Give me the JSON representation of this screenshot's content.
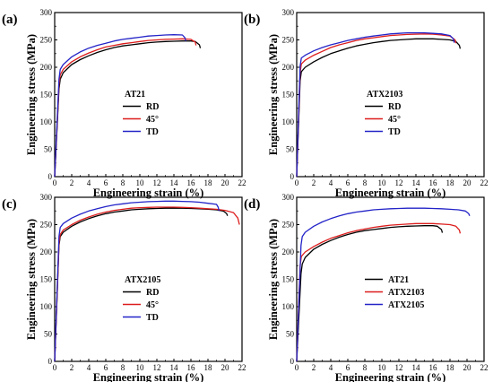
{
  "chart_data": [
    {
      "panel": "(a)",
      "type": "line",
      "xlabel": "Engineering strain (%)",
      "ylabel": "Engineering stress (MPa)",
      "xlim": [
        0,
        22
      ],
      "ylim": [
        0,
        300
      ],
      "xticks": [
        "0",
        "2",
        "4",
        "6",
        "8",
        "10",
        "12",
        "14",
        "16",
        "18",
        "20",
        "22"
      ],
      "yticks": [
        "0",
        "50",
        "100",
        "150",
        "200",
        "250",
        "300"
      ],
      "legend_title": "AT21",
      "legend_position": "center-left",
      "series": [
        {
          "name": "RD",
          "color": "#000000",
          "x": [
            0,
            0.5,
            0.65,
            1,
            2,
            3,
            4,
            5,
            6,
            7,
            8,
            9,
            10,
            11,
            12,
            13,
            14,
            15,
            16,
            16.5,
            17,
            17.1
          ],
          "y": [
            0,
            160,
            178,
            190,
            205,
            214,
            221,
            227,
            232,
            236,
            239,
            241,
            243,
            245,
            246,
            247,
            247.5,
            248,
            248,
            247,
            241,
            235
          ]
        },
        {
          "name": "45°",
          "color": "#dd1c1c",
          "x": [
            0,
            0.5,
            0.65,
            1,
            2,
            3,
            4,
            5,
            6,
            7,
            8,
            9,
            10,
            11,
            12,
            13,
            14,
            15,
            16,
            16.5,
            16.6
          ],
          "y": [
            0,
            168,
            186,
            196,
            210,
            219,
            226,
            232,
            237,
            240,
            243,
            245,
            247,
            249,
            250,
            251,
            251.5,
            252,
            251,
            246,
            240
          ]
        },
        {
          "name": "TD",
          "color": "#2323c8",
          "x": [
            0,
            0.5,
            0.65,
            1,
            2,
            3,
            4,
            5,
            6,
            7,
            8,
            9,
            10,
            11,
            12,
            13,
            14,
            15,
            15.3,
            15.4
          ],
          "y": [
            0,
            178,
            196,
            205,
            219,
            228,
            235,
            240,
            244,
            248,
            251,
            253,
            255,
            257,
            258,
            259,
            259.5,
            259,
            254,
            248
          ]
        }
      ]
    },
    {
      "panel": "(b)",
      "type": "line",
      "xlabel": "Engineering strain (%)",
      "ylabel": "Engineering stress (MPa)",
      "xlim": [
        0,
        22
      ],
      "ylim": [
        0,
        300
      ],
      "xticks": [
        "0",
        "2",
        "4",
        "6",
        "8",
        "10",
        "12",
        "14",
        "16",
        "18",
        "20",
        "22"
      ],
      "yticks": [
        "0",
        "50",
        "100",
        "150",
        "200",
        "250",
        "300"
      ],
      "legend_title": "ATX2103",
      "legend_position": "center-right",
      "series": [
        {
          "name": "RD",
          "color": "#000000",
          "x": [
            0,
            0.4,
            0.55,
            1,
            2,
            3,
            4,
            5,
            6,
            7,
            8,
            9,
            10,
            11,
            12,
            13,
            14,
            15,
            16,
            17,
            18,
            18.7,
            19.1,
            19.2
          ],
          "y": [
            0,
            175,
            192,
            200,
            210,
            218,
            225,
            230,
            235,
            239,
            242,
            245,
            247,
            249,
            250,
            251,
            252,
            252,
            252,
            251,
            250,
            247,
            240,
            234
          ]
        },
        {
          "name": "45°",
          "color": "#dd1c1c",
          "x": [
            0,
            0.4,
            0.55,
            1,
            2,
            3,
            4,
            5,
            6,
            7,
            8,
            9,
            10,
            11,
            12,
            13,
            14,
            15,
            16,
            17,
            18,
            18.6,
            18.7
          ],
          "y": [
            0,
            190,
            206,
            213,
            222,
            229,
            236,
            241,
            245,
            249,
            252,
            254,
            256,
            258,
            259,
            260,
            260.5,
            261,
            260.5,
            259,
            257,
            250,
            244
          ]
        },
        {
          "name": "TD",
          "color": "#2323c8",
          "x": [
            0,
            0.4,
            0.55,
            1,
            2,
            3,
            4,
            5,
            6,
            7,
            8,
            9,
            10,
            11,
            12,
            13,
            14,
            15,
            16,
            17,
            18,
            18.4,
            18.5
          ],
          "y": [
            0,
            202,
            217,
            222,
            230,
            236,
            241,
            245,
            249,
            252,
            255,
            257,
            259,
            261,
            262,
            263,
            263,
            263,
            262,
            261,
            258,
            252,
            245
          ]
        }
      ]
    },
    {
      "panel": "(c)",
      "type": "line",
      "xlabel": "Engineering strain (%)",
      "ylabel": "Engineering stress (MPa)",
      "xlim": [
        0,
        22
      ],
      "ylim": [
        0,
        300
      ],
      "xticks": [
        "0",
        "2",
        "4",
        "6",
        "8",
        "10",
        "12",
        "14",
        "16",
        "18",
        "20",
        "22"
      ],
      "yticks": [
        "0",
        "50",
        "100",
        "150",
        "200",
        "250",
        "300"
      ],
      "legend_title": "ATX2105",
      "legend_position": "center-left",
      "series": [
        {
          "name": "RD",
          "color": "#000000",
          "x": [
            0,
            0.5,
            0.65,
            1,
            2,
            3,
            4,
            5,
            6,
            7,
            8,
            9,
            10,
            11,
            12,
            13,
            14,
            15,
            16,
            17,
            18,
            19,
            19.8,
            20.2,
            20.3
          ],
          "y": [
            0,
            212,
            228,
            236,
            247,
            255,
            261,
            266,
            270,
            273,
            275,
            277,
            278,
            279,
            279.5,
            280,
            280,
            280,
            279.5,
            279,
            278,
            277,
            275,
            270,
            266
          ]
        },
        {
          "name": "45°",
          "color": "#dd1c1c",
          "x": [
            0,
            0.5,
            0.65,
            1,
            2,
            3,
            4,
            5,
            6,
            7,
            8,
            9,
            10,
            11,
            12,
            13,
            14,
            15,
            16,
            17,
            18,
            19,
            20,
            21,
            21.5,
            21.7
          ],
          "y": [
            0,
            215,
            232,
            240,
            250,
            258,
            264,
            269,
            273,
            276,
            278,
            280,
            281,
            281.5,
            282,
            282,
            282,
            281.5,
            281,
            280,
            279,
            278,
            276,
            272,
            262,
            250
          ]
        },
        {
          "name": "TD",
          "color": "#2323c8",
          "x": [
            0,
            0.5,
            0.65,
            1,
            2,
            3,
            4,
            5,
            6,
            7,
            8,
            9,
            10,
            11,
            12,
            13,
            14,
            15,
            16,
            17,
            18,
            19,
            19.2,
            19.3
          ],
          "y": [
            0,
            228,
            245,
            252,
            262,
            269,
            275,
            279,
            283,
            286,
            288,
            290,
            291,
            292,
            292.5,
            293,
            293,
            292.5,
            292,
            291,
            289,
            287,
            282,
            275
          ]
        }
      ]
    },
    {
      "panel": "(d)",
      "type": "line",
      "xlabel": "Engineering strain (%)",
      "ylabel": "Engineering stress (MPa)",
      "xlim": [
        0,
        22
      ],
      "ylim": [
        0,
        300
      ],
      "xticks": [
        "0",
        "2",
        "4",
        "6",
        "8",
        "10",
        "12",
        "14",
        "16",
        "18",
        "20",
        "22"
      ],
      "yticks": [
        "0",
        "50",
        "100",
        "150",
        "200",
        "250",
        "300"
      ],
      "legend_title": "",
      "legend_position": "center-right",
      "series": [
        {
          "name": "AT21",
          "color": "#000000",
          "x": [
            0,
            0.5,
            0.65,
            1,
            2,
            3,
            4,
            5,
            6,
            7,
            8,
            9,
            10,
            11,
            12,
            13,
            14,
            15,
            16,
            16.5,
            17,
            17.1
          ],
          "y": [
            0,
            160,
            178,
            190,
            205,
            214,
            221,
            227,
            232,
            236,
            239,
            241,
            243,
            245,
            246,
            247,
            247.5,
            248,
            248,
            247,
            241,
            235
          ]
        },
        {
          "name": "ATX2103",
          "color": "#dd1c1c",
          "x": [
            0,
            0.4,
            0.55,
            1,
            2,
            3,
            4,
            5,
            6,
            7,
            8,
            9,
            10,
            11,
            12,
            13,
            14,
            15,
            16,
            17,
            18,
            18.7,
            19.1,
            19.2
          ],
          "y": [
            0,
            175,
            192,
            200,
            210,
            218,
            225,
            230,
            235,
            239,
            242,
            245,
            247,
            249,
            250,
            251,
            252,
            252,
            252,
            251,
            250,
            247,
            240,
            234
          ]
        },
        {
          "name": "ATX2105",
          "color": "#2323c8",
          "x": [
            0,
            0.5,
            0.65,
            1,
            2,
            3,
            4,
            5,
            6,
            7,
            8,
            9,
            10,
            11,
            12,
            13,
            14,
            15,
            16,
            17,
            18,
            19,
            19.8,
            20.2,
            20.3
          ],
          "y": [
            0,
            212,
            228,
            236,
            247,
            255,
            261,
            266,
            270,
            273,
            275,
            277,
            278,
            279,
            279.5,
            280,
            280,
            280,
            279.5,
            279,
            278,
            277,
            275,
            270,
            266
          ]
        }
      ]
    }
  ]
}
